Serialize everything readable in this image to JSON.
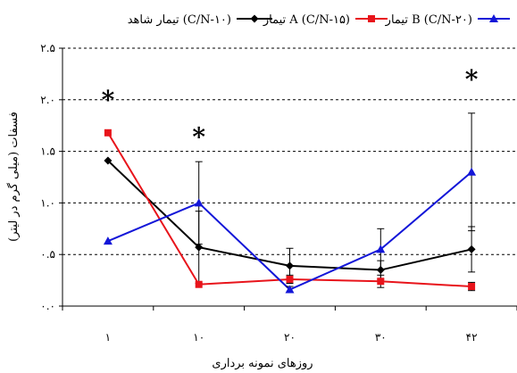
{
  "chart_data": {
    "type": "line",
    "title": "",
    "xlabel": "روزهای نمونه برداری",
    "ylabel": "فسفات (میلی گرم در لیتر)",
    "categories": [
      "۱",
      "۱۰",
      "۲۰",
      "۳۰",
      "۴۲"
    ],
    "ylim": [
      0,
      2.5
    ],
    "yticks": [
      0,
      0.5,
      1.0,
      1.5,
      2.0,
      2.5
    ],
    "ytick_labels": [
      "۰.۰",
      "۰.۵",
      "۱.۰",
      "۱.۵",
      "۲.۰",
      "۲.۵"
    ],
    "grid": "horizontal-dashed",
    "legend_position": "top",
    "series": [
      {
        "name": "تیمار شاهد (C/N-۱۰)",
        "color": "#000000",
        "marker": "diamond",
        "values": [
          1.41,
          0.57,
          0.39,
          0.35,
          0.55
        ],
        "error": [
          0,
          0.35,
          0.17,
          0.09,
          0.22
        ]
      },
      {
        "name": "تیمار A (C/N-۱۵)",
        "color": "#e8141b",
        "marker": "square",
        "values": [
          1.68,
          0.21,
          0.26,
          0.24,
          0.19
        ],
        "error": [
          0,
          0,
          0.04,
          0.06,
          0.04
        ]
      },
      {
        "name": "تیمار B (C/N-۲۰)",
        "color": "#1316d8",
        "marker": "triangle",
        "values": [
          0.63,
          1.0,
          0.16,
          0.55,
          1.3
        ],
        "error": [
          0,
          0.4,
          0.03,
          0.2,
          0.57
        ]
      }
    ],
    "annotations": [
      {
        "text": "*",
        "category_index": 0,
        "y": 2.02
      },
      {
        "text": "*",
        "category_index": 1,
        "y": 1.66
      },
      {
        "text": "*",
        "category_index": 4,
        "y": 2.22
      }
    ]
  }
}
